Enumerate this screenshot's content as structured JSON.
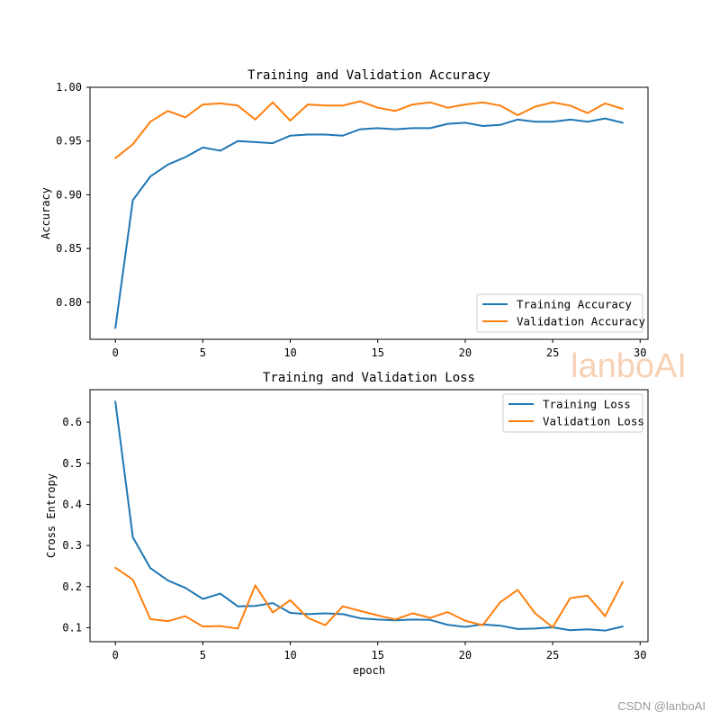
{
  "colors": {
    "training": "#1f77b4",
    "validation": "#ff7f0e",
    "watermark": "#f6c9a8",
    "footer": "#9a9a9a"
  },
  "watermark": "lanboAI",
  "footer": "CSDN @lanboAI",
  "chart_data": [
    {
      "type": "line",
      "title": "Training and Validation Accuracy",
      "xlabel": "",
      "ylabel": "Accuracy",
      "xlim": [
        -1.45,
        30.45
      ],
      "ylim": [
        0.7655,
        1.0
      ],
      "xticks": [
        0,
        5,
        10,
        15,
        20,
        25,
        30
      ],
      "yticks": [
        0.8,
        0.85,
        0.9,
        0.95,
        1.0
      ],
      "ytick_labels": [
        "0.80",
        "0.85",
        "0.90",
        "0.95",
        "1.00"
      ],
      "legend_position": "lower-right",
      "x": [
        0,
        1,
        2,
        3,
        4,
        5,
        6,
        7,
        8,
        9,
        10,
        11,
        12,
        13,
        14,
        15,
        16,
        17,
        18,
        19,
        20,
        21,
        22,
        23,
        24,
        25,
        26,
        27,
        28,
        29
      ],
      "series": [
        {
          "name": "Training Accuracy",
          "color_key": "training",
          "values": [
            0.776,
            0.895,
            0.917,
            0.928,
            0.935,
            0.944,
            0.941,
            0.95,
            0.949,
            0.948,
            0.955,
            0.956,
            0.956,
            0.955,
            0.961,
            0.962,
            0.961,
            0.962,
            0.962,
            0.966,
            0.967,
            0.964,
            0.965,
            0.97,
            0.968,
            0.968,
            0.97,
            0.968,
            0.971,
            0.967
          ]
        },
        {
          "name": "Validation Accuracy",
          "color_key": "validation",
          "values": [
            0.934,
            0.947,
            0.968,
            0.978,
            0.972,
            0.984,
            0.985,
            0.983,
            0.97,
            0.986,
            0.969,
            0.984,
            0.983,
            0.983,
            0.987,
            0.981,
            0.978,
            0.984,
            0.986,
            0.981,
            0.984,
            0.986,
            0.983,
            0.974,
            0.982,
            0.986,
            0.983,
            0.976,
            0.985,
            0.98
          ]
        }
      ]
    },
    {
      "type": "line",
      "title": "Training and Validation Loss",
      "xlabel": "epoch",
      "ylabel": "Cross Entropy",
      "xlim": [
        -1.45,
        30.45
      ],
      "ylim": [
        0.066,
        0.679
      ],
      "xticks": [
        0,
        5,
        10,
        15,
        20,
        25,
        30
      ],
      "yticks": [
        0.1,
        0.2,
        0.3,
        0.4,
        0.5,
        0.6
      ],
      "ytick_labels": [
        "0.1",
        "0.2",
        "0.3",
        "0.4",
        "0.5",
        "0.6"
      ],
      "legend_position": "upper-right",
      "x": [
        0,
        1,
        2,
        3,
        4,
        5,
        6,
        7,
        8,
        9,
        10,
        11,
        12,
        13,
        14,
        15,
        16,
        17,
        18,
        19,
        20,
        21,
        22,
        23,
        24,
        25,
        26,
        27,
        28,
        29
      ],
      "series": [
        {
          "name": "Training Loss",
          "color_key": "training",
          "values": [
            0.65,
            0.32,
            0.245,
            0.215,
            0.197,
            0.17,
            0.183,
            0.152,
            0.153,
            0.16,
            0.136,
            0.133,
            0.135,
            0.133,
            0.123,
            0.12,
            0.118,
            0.12,
            0.119,
            0.107,
            0.102,
            0.108,
            0.105,
            0.097,
            0.098,
            0.101,
            0.094,
            0.096,
            0.093,
            0.103
          ]
        },
        {
          "name": "Validation Loss",
          "color_key": "validation",
          "values": [
            0.246,
            0.217,
            0.121,
            0.116,
            0.128,
            0.103,
            0.104,
            0.098,
            0.203,
            0.137,
            0.167,
            0.124,
            0.106,
            0.152,
            0.141,
            0.13,
            0.12,
            0.135,
            0.124,
            0.138,
            0.117,
            0.106,
            0.162,
            0.192,
            0.135,
            0.101,
            0.172,
            0.178,
            0.128,
            0.211
          ]
        }
      ]
    }
  ]
}
